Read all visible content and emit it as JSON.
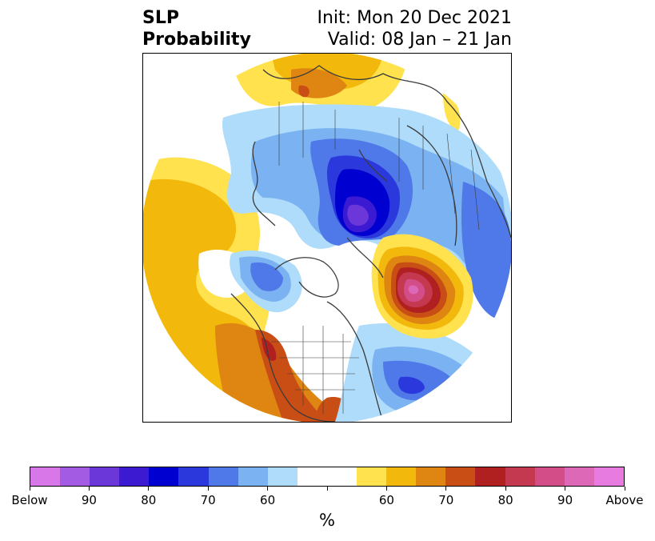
{
  "header": {
    "title_line1": "SLP",
    "title_line2": "Probability",
    "init": "Init: Mon 20 Dec 2021",
    "valid": "Valid: 08 Jan – 21 Jan"
  },
  "colorbar": {
    "unit": "%",
    "colors": [
      "#d877e8",
      "#a35be3",
      "#6b37d8",
      "#3b1ad2",
      "#0000d0",
      "#2a38dc",
      "#4f78e8",
      "#7ab2f2",
      "#aedcfa",
      "#ffffff",
      "#ffffff",
      "#ffe24e",
      "#f2b80c",
      "#df8612",
      "#c84e15",
      "#b02020",
      "#c43850",
      "#d34e88",
      "#dd68b8",
      "#e87be0"
    ],
    "tick_labels": [
      "Below",
      "90",
      "80",
      "70",
      "60",
      "",
      "60",
      "70",
      "80",
      "90",
      "Above"
    ]
  },
  "map": {
    "projection": "north polar stereographic",
    "palette": {
      "below_90": "#6b37d8",
      "below_80": "#0000d0",
      "below_70": "#4f78e8",
      "below_60": "#7ab2f2",
      "below_50": "#aedcfa",
      "above_50": "#ffe24e",
      "above_60": "#f2b80c",
      "above_70": "#df8612",
      "above_80": "#c84e15",
      "above_90": "#b02020",
      "above_95": "#d34e88",
      "coast": "#3b3b3b"
    }
  }
}
